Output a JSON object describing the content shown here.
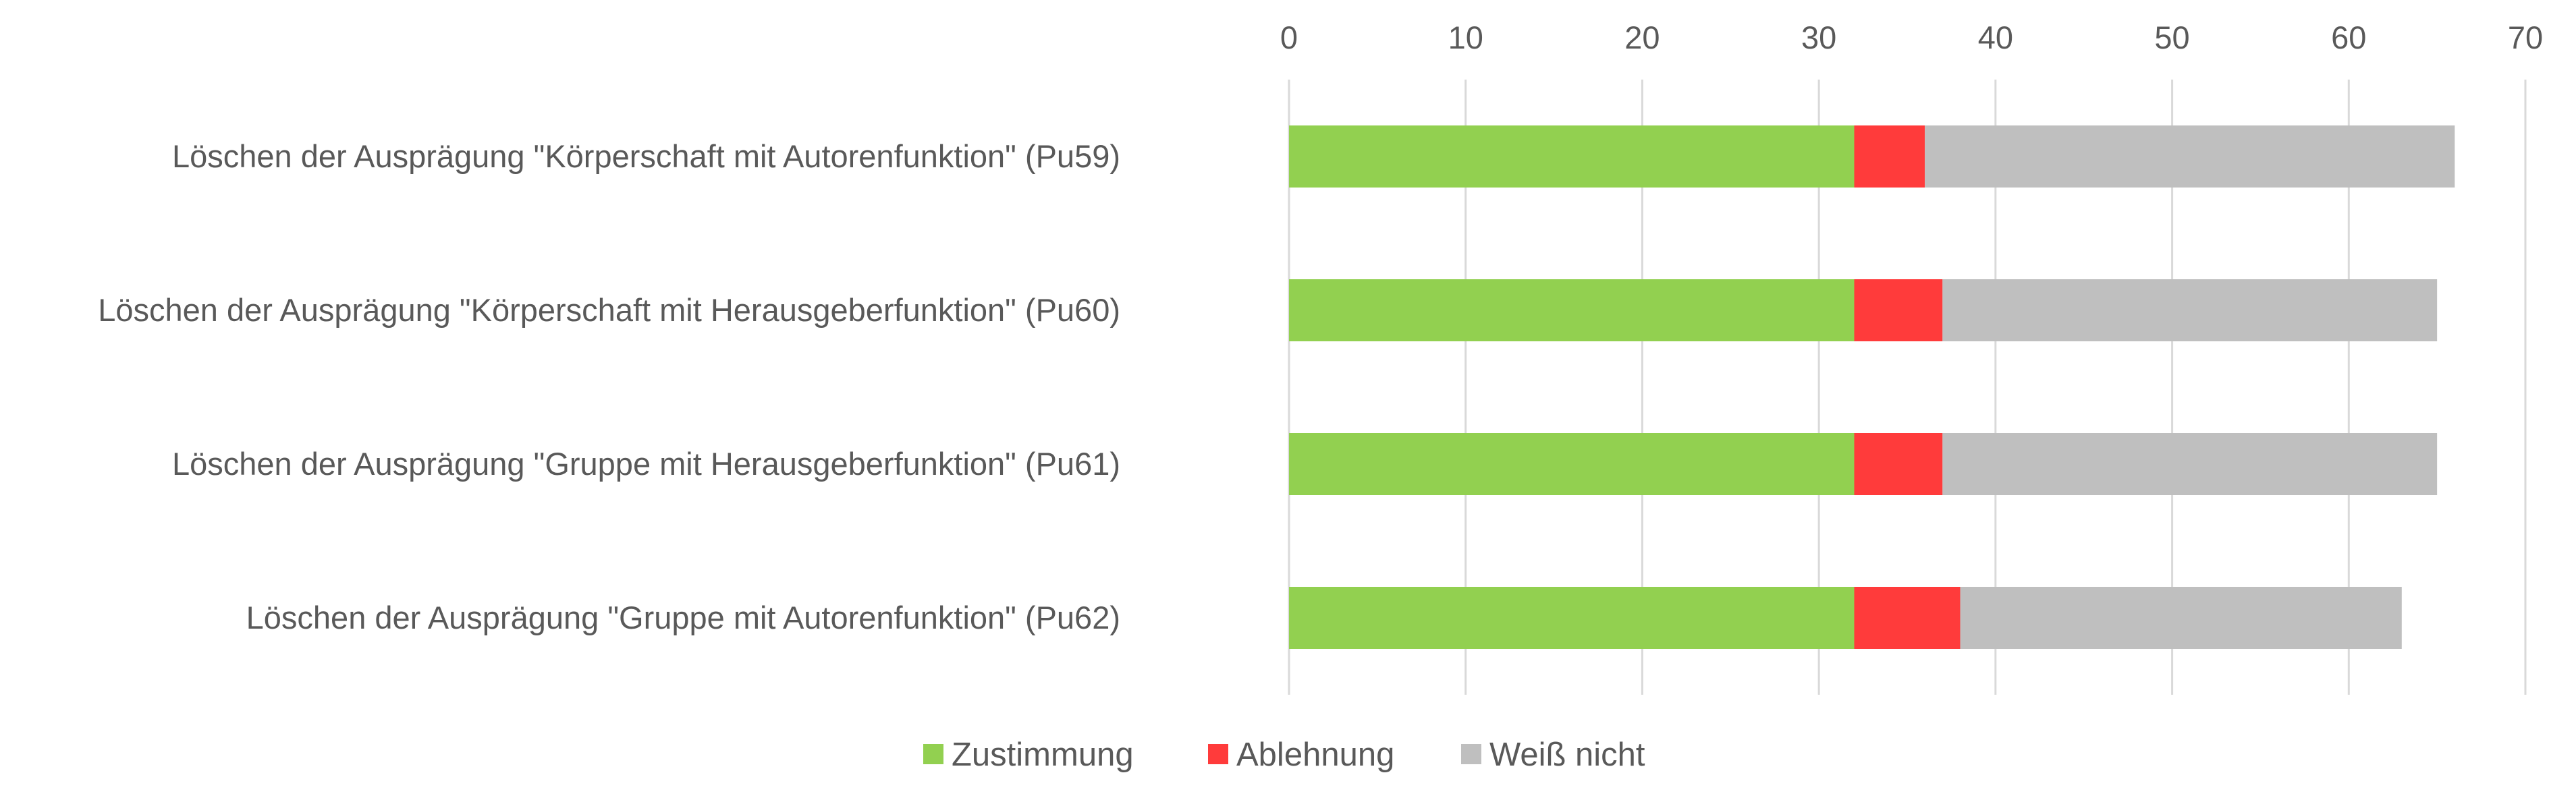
{
  "chart_data": {
    "type": "bar",
    "orientation": "horizontal",
    "stacked": true,
    "categories": [
      "Löschen der Ausprägung \"Körperschaft mit Autorenfunktion\" (Pu59)",
      "Löschen der Ausprägung \"Körperschaft mit Herausgeberfunktion\" (Pu60)",
      "Löschen der Ausprägung \"Gruppe mit Herausgeberfunktion\" (Pu61)",
      "Löschen der Ausprägung \"Gruppe mit Autorenfunktion\" (Pu62)"
    ],
    "series": [
      {
        "name": "Zustimmung",
        "color": "#92d050",
        "values": [
          32,
          32,
          32,
          32
        ]
      },
      {
        "name": "Ablehnung",
        "color": "#ff3b3b",
        "values": [
          4,
          5,
          5,
          6
        ]
      },
      {
        "name": "Weiß nicht",
        "color": "#bfbfbf",
        "values": [
          30,
          28,
          28,
          25
        ]
      }
    ],
    "xlim": [
      0,
      70
    ],
    "xticks": [
      "0",
      "10",
      "20",
      "30",
      "40",
      "50",
      "60",
      "70"
    ],
    "axis_position": "top",
    "grid": true,
    "legend": "bottom"
  }
}
